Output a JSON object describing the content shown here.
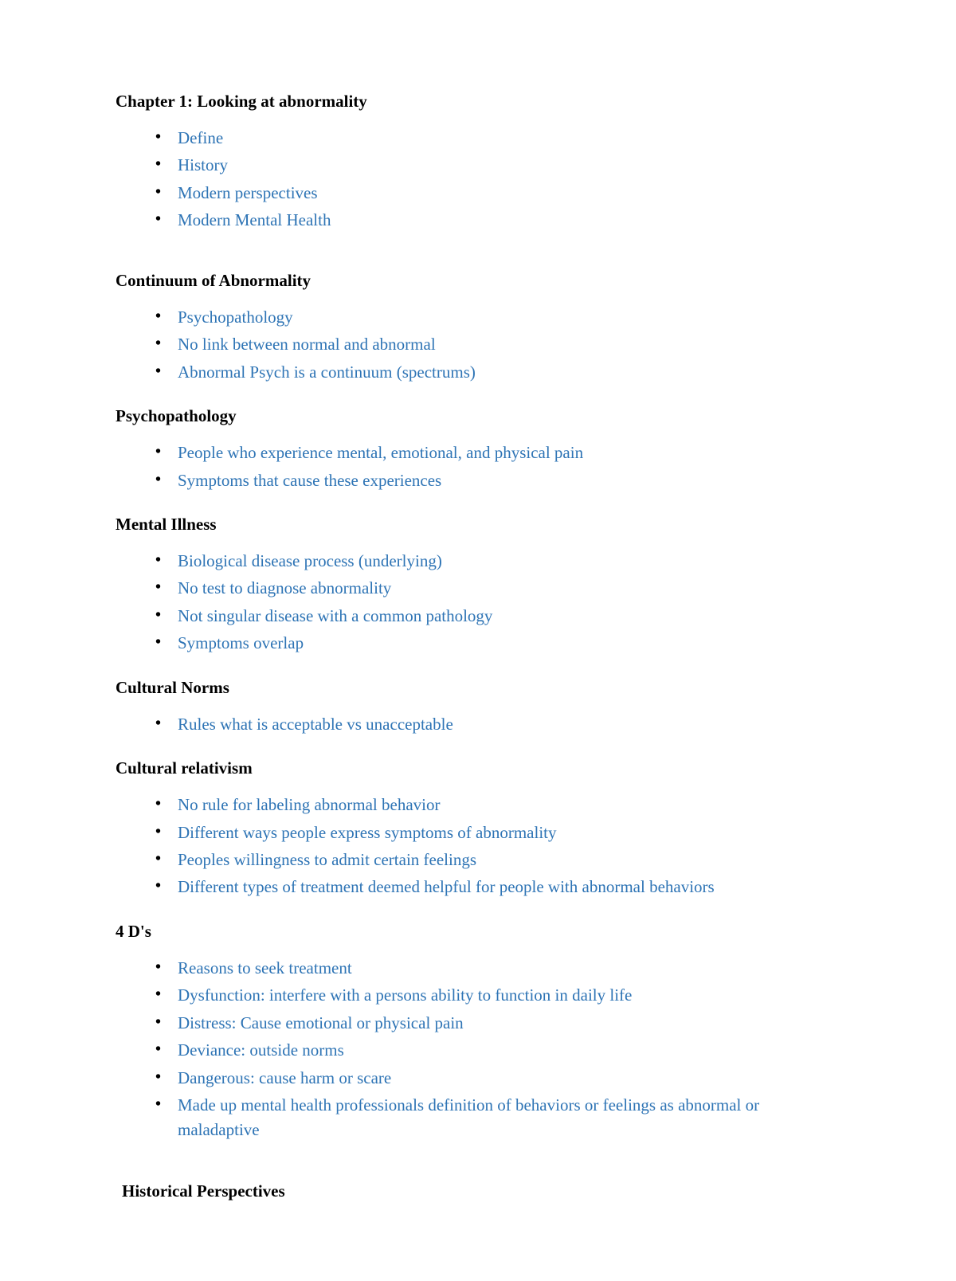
{
  "link_color": "#2e74b5",
  "text_color": "#000000",
  "background_color": "#ffffff",
  "font_family": "Times New Roman",
  "heading_fontsize": 21,
  "body_fontsize": 21,
  "sections": [
    {
      "title": "Chapter 1: Looking at abnormality",
      "extra_top": false,
      "items": [
        "Define",
        "History",
        "Modern perspectives",
        "Modern Mental Health"
      ]
    },
    {
      "title": "Continuum of Abnormality",
      "extra_top": true,
      "items": [
        "Psychopathology",
        "No link between normal and abnormal",
        "Abnormal Psych is a continuum (spectrums)"
      ]
    },
    {
      "title": "Psychopathology",
      "extra_top": false,
      "items": [
        "People who experience mental, emotional, and physical pain",
        "Symptoms that cause these experiences"
      ]
    },
    {
      "title": "Mental Illness",
      "extra_top": false,
      "items": [
        "Biological disease process (underlying)",
        "No test to diagnose abnormality",
        "Not singular disease with a common pathology",
        "Symptoms overlap"
      ]
    },
    {
      "title": "Cultural Norms",
      "extra_top": false,
      "items": [
        "Rules what is acceptable vs unacceptable"
      ]
    },
    {
      "title": "Cultural relativism",
      "extra_top": false,
      "items": [
        "No rule for labeling abnormal behavior",
        "Different ways people express symptoms of abnormality",
        "Peoples willingness to admit certain feelings",
        "Different types of treatment deemed helpful for people with abnormal behaviors"
      ]
    },
    {
      "title": "4 D's",
      "extra_top": false,
      "items": [
        "Reasons to seek treatment",
        "Dysfunction: interfere with a persons ability to function in daily life",
        "Distress: Cause emotional or physical pain",
        "Deviance: outside norms",
        "Dangerous: cause harm or scare",
        "Made up mental health professionals definition of behaviors or feelings as abnormal or maladaptive"
      ]
    }
  ],
  "final_heading": "Historical Perspectives"
}
